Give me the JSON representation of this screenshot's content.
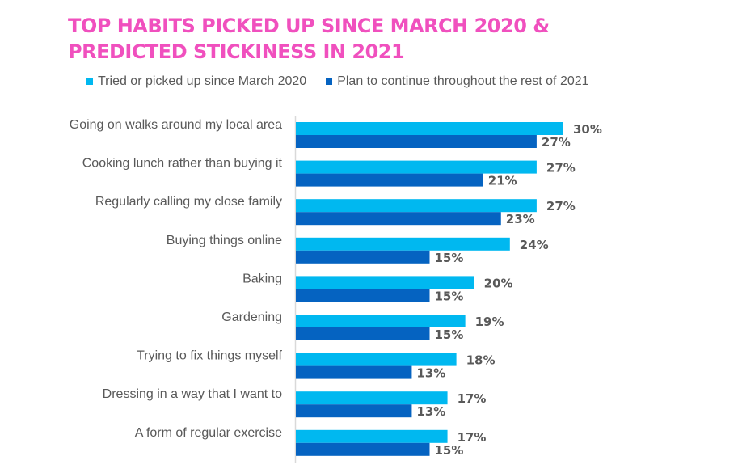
{
  "chart_data": {
    "type": "bar",
    "orientation": "horizontal",
    "title": "TOP HABITS PICKED UP SINCE MARCH 2020 & PREDICTED STICKINESS IN 2021",
    "title_lines": [
      "TOP HABITS PICKED UP SINCE MARCH 2020 &",
      "PREDICTED STICKINESS IN 2021"
    ],
    "xlabel": "",
    "ylabel": "",
    "xlim": [
      0,
      30
    ],
    "grid": false,
    "legend_position": "top",
    "categories": [
      "Going on walks around my local area",
      "Cooking lunch rather than buying it",
      "Regularly calling my close family",
      "Buying things online",
      "Baking",
      "Gardening",
      "Trying to fix things myself",
      "Dressing in a way that I want to",
      "A form of regular exercise"
    ],
    "series": [
      {
        "name": "Tried or picked up since March 2020",
        "color": "#00b8f0",
        "values": [
          30,
          27,
          27,
          24,
          20,
          19,
          18,
          17,
          17
        ]
      },
      {
        "name": "Plan to continue throughout the rest of 2021",
        "color": "#0563c1",
        "values": [
          27,
          21,
          23,
          15,
          15,
          15,
          13,
          13,
          15
        ]
      }
    ],
    "value_suffix": "%"
  }
}
